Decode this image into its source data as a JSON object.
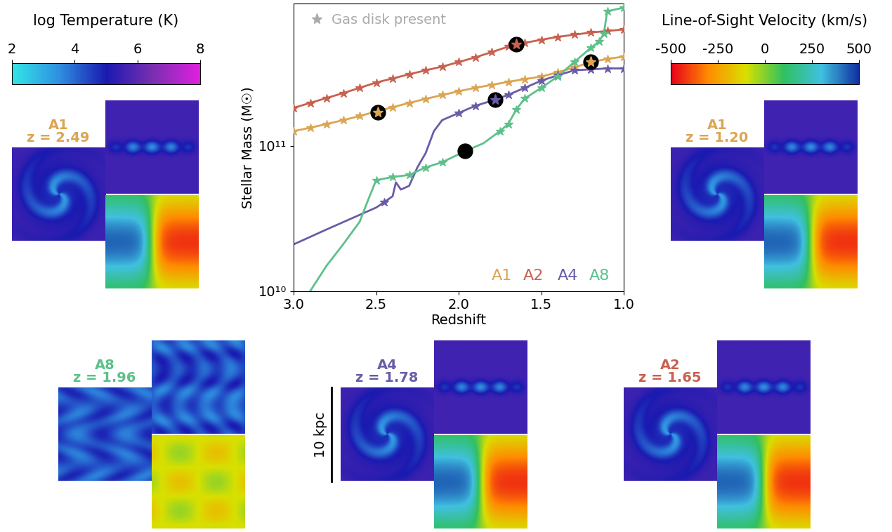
{
  "chart_data": {
    "type": "line",
    "xlabel": "Redshift",
    "ylabel": "Stellar Mass (M☉)",
    "log": "y",
    "xlim": [
      3.0,
      1.0
    ],
    "xticks": [
      3.0,
      2.5,
      2.0,
      1.5,
      1.0
    ],
    "ylim": [
      10000000000.0,
      950000000000.0
    ],
    "yticks": [
      {
        "value": 10000000000.0,
        "label": "10¹⁰"
      },
      {
        "value": 100000000000.0,
        "label": "10¹¹"
      }
    ],
    "legend": "upper left",
    "marker_legend": {
      "name": "Gas disk present",
      "color": "#aaaaaa",
      "marker": "star"
    },
    "series": [
      {
        "name": "A1",
        "color": "#dba552",
        "x": [
          3.0,
          2.9,
          2.8,
          2.7,
          2.6,
          2.5,
          2.4,
          2.3,
          2.2,
          2.1,
          2.0,
          1.9,
          1.8,
          1.7,
          1.6,
          1.5,
          1.4,
          1.3,
          1.2,
          1.1,
          1.0
        ],
        "values": [
          126000000000.0,
          133000000000.0,
          141000000000.0,
          150000000000.0,
          160000000000.0,
          172000000000.0,
          184000000000.0,
          197000000000.0,
          210000000000.0,
          223000000000.0,
          237000000000.0,
          250000000000.0,
          262000000000.0,
          275000000000.0,
          287000000000.0,
          299000000000.0,
          320000000000.0,
          345000000000.0,
          376000000000.0,
          395000000000.0,
          410000000000.0
        ],
        "gas_disk": [
          true,
          true,
          true,
          true,
          true,
          true,
          true,
          true,
          true,
          true,
          true,
          true,
          true,
          true,
          true,
          true,
          true,
          true,
          true,
          true,
          true
        ]
      },
      {
        "name": "A2",
        "color": "#c8614f",
        "x": [
          3.0,
          2.9,
          2.8,
          2.7,
          2.6,
          2.5,
          2.4,
          2.3,
          2.2,
          2.1,
          2.0,
          1.9,
          1.8,
          1.7,
          1.6,
          1.5,
          1.4,
          1.3,
          1.2,
          1.1,
          1.0
        ],
        "values": [
          182000000000.0,
          197000000000.0,
          213000000000.0,
          230000000000.0,
          250000000000.0,
          272000000000.0,
          290000000000.0,
          310000000000.0,
          330000000000.0,
          350000000000.0,
          376000000000.0,
          405000000000.0,
          440000000000.0,
          480000000000.0,
          510000000000.0,
          535000000000.0,
          560000000000.0,
          580000000000.0,
          600000000000.0,
          615000000000.0,
          630000000000.0
        ],
        "gas_disk": [
          true,
          true,
          true,
          true,
          true,
          true,
          true,
          true,
          true,
          true,
          true,
          true,
          true,
          true,
          true,
          true,
          true,
          true,
          true,
          true,
          true
        ]
      },
      {
        "name": "A4",
        "color": "#6a5ba8",
        "x": [
          3.0,
          2.8,
          2.6,
          2.5,
          2.45,
          2.4,
          2.38,
          2.35,
          2.3,
          2.25,
          2.2,
          2.15,
          2.1,
          2.0,
          1.9,
          1.78,
          1.7,
          1.6,
          1.5,
          1.4,
          1.3,
          1.2,
          1.1,
          1.0
        ],
        "values": [
          21000000000.0,
          26600000000.0,
          33500000000.0,
          37600000000.0,
          41000000000.0,
          45000000000.0,
          56000000000.0,
          50000000000.0,
          53000000000.0,
          71000000000.0,
          89000000000.0,
          126000000000.0,
          150000000000.0,
          168000000000.0,
          188000000000.0,
          207000000000.0,
          224000000000.0,
          250000000000.0,
          280000000000.0,
          305000000000.0,
          330000000000.0,
          335000000000.0,
          340000000000.0,
          340000000000.0
        ],
        "gas_disk": [
          false,
          false,
          false,
          false,
          true,
          false,
          false,
          false,
          false,
          false,
          false,
          false,
          false,
          true,
          true,
          true,
          true,
          true,
          true,
          true,
          true,
          true,
          true,
          true
        ]
      },
      {
        "name": "A8",
        "color": "#5dc08b",
        "x": [
          2.9,
          2.8,
          2.7,
          2.6,
          2.55,
          2.5,
          2.4,
          2.3,
          2.2,
          2.1,
          1.96,
          1.85,
          1.75,
          1.7,
          1.65,
          1.6,
          1.5,
          1.4,
          1.3,
          1.2,
          1.15,
          1.12,
          1.1,
          1.0
        ],
        "values": [
          10000000000.0,
          15000000000.0,
          21000000000.0,
          30000000000.0,
          42000000000.0,
          58000000000.0,
          61000000000.0,
          63000000000.0,
          71000000000.0,
          77000000000.0,
          92000000000.0,
          104000000000.0,
          126000000000.0,
          141000000000.0,
          178000000000.0,
          211000000000.0,
          250000000000.0,
          299000000000.0,
          376000000000.0,
          470000000000.0,
          520000000000.0,
          590000000000.0,
          840000000000.0,
          890000000000.0
        ],
        "gas_disk": [
          false,
          false,
          false,
          false,
          false,
          true,
          true,
          true,
          true,
          true,
          false,
          false,
          true,
          true,
          true,
          true,
          true,
          true,
          true,
          true,
          true,
          true,
          true,
          true
        ]
      }
    ],
    "snapshots": [
      {
        "name": "A1",
        "z": 2.49,
        "mass": 170000000000.0,
        "gas_disk": true,
        "label": "z = 2.49"
      },
      {
        "name": "A8",
        "z": 1.96,
        "mass": 92000000000.0,
        "gas_disk": false,
        "label": "z = 1.96"
      },
      {
        "name": "A4",
        "z": 1.78,
        "mass": 207000000000.0,
        "gas_disk": true,
        "label": "z = 1.78"
      },
      {
        "name": "A2",
        "z": 1.65,
        "mass": 500000000000.0,
        "gas_disk": true,
        "label": "z = 1.65"
      },
      {
        "name": "A1",
        "z": 1.2,
        "mass": 376000000000.0,
        "gas_disk": true,
        "label": "z = 1.20"
      }
    ],
    "temperature_colorbar": {
      "label": "log Temperature (K)",
      "range": [
        2,
        8
      ],
      "ticks": [
        2,
        4,
        6,
        8
      ]
    },
    "velocity_colorbar": {
      "label": "Line-of-Sight Velocity (km/s)",
      "range": [
        -500,
        500
      ],
      "ticks": [
        -500,
        -250,
        0,
        250,
        500
      ]
    },
    "scale_bar": "10 kpc"
  }
}
